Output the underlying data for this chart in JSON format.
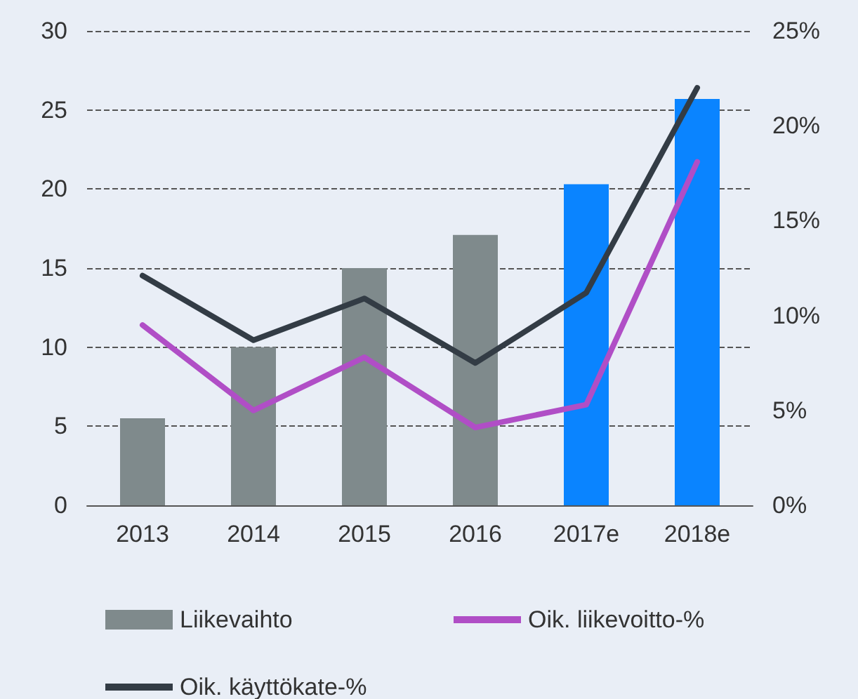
{
  "chart_data": {
    "type": "bar",
    "categories": [
      "2013",
      "2014",
      "2015",
      "2016",
      "2017e",
      "2018e"
    ],
    "series": [
      {
        "name": "Liikevaihto",
        "color": "#7f8a8c",
        "colors": [
          "#7f8a8c",
          "#7f8a8c",
          "#7f8a8c",
          "#7f8a8c",
          "#0a84ff",
          "#0a84ff"
        ],
        "values": [
          5.5,
          10,
          15,
          17.1,
          20.3,
          25.7
        ]
      },
      {
        "name": "Oik. liikevoitto-%",
        "type": "line",
        "axis": "y2",
        "color": "#b04ec6",
        "values": [
          9.5,
          5,
          7.8,
          4.1,
          5.3,
          18.1
        ]
      },
      {
        "name": "Oik. käyttökate-%",
        "type": "line",
        "axis": "y2",
        "color": "#333c45",
        "values": [
          12.1,
          8.7,
          10.9,
          7.5,
          11.2,
          22
        ]
      }
    ],
    "ylim": [
      0,
      30
    ],
    "yticks": [
      0,
      5,
      10,
      15,
      20,
      25,
      30
    ],
    "y2lim": [
      0,
      25
    ],
    "y2ticks": [
      {
        "value": 0,
        "label": "0%"
      },
      {
        "value": 5,
        "label": "5%"
      },
      {
        "value": 10,
        "label": "10%"
      },
      {
        "value": 15,
        "label": "15%"
      },
      {
        "value": 20,
        "label": "20%"
      },
      {
        "value": 25,
        "label": "25%"
      }
    ],
    "grid": "y",
    "legend": "bottom",
    "marker": "none",
    "line_style": "solid"
  }
}
